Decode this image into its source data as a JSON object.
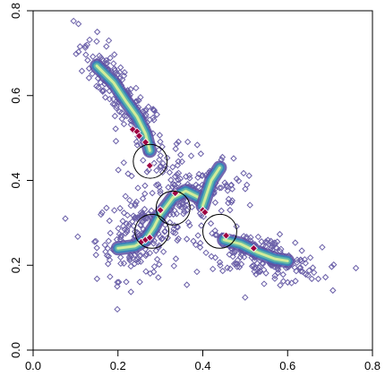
{
  "chart_data": {
    "type": "scatter",
    "title": "",
    "xlabel": "",
    "ylabel": "",
    "xlim": [
      0,
      0.8
    ],
    "ylim": [
      0,
      0.8
    ],
    "x_ticks": [
      "0.0",
      "0.2",
      "0.4",
      "0.6",
      "0.8"
    ],
    "y_ticks": [
      "0.0",
      "0.2",
      "0.4",
      "0.6",
      "0.8"
    ],
    "grid": false,
    "legend": "none",
    "colors": {
      "points": "#6a5fa8",
      "density_low": "#5e4fa2",
      "density_mid_low": "#3288bd",
      "density_mid": "#66c2a5",
      "density_mid_high": "#e6f598",
      "density_high": "#9e0142",
      "circles": "#000000"
    },
    "marker": "open-diamond",
    "point_clusters": [
      {
        "cx": 0.21,
        "cy": 0.6,
        "sx": 0.05,
        "sy": 0.07,
        "n": 170,
        "corr": -0.85
      },
      {
        "cx": 0.25,
        "cy": 0.27,
        "sx": 0.05,
        "sy": 0.05,
        "n": 190,
        "corr": 0.1
      },
      {
        "cx": 0.36,
        "cy": 0.36,
        "sx": 0.04,
        "sy": 0.04,
        "n": 90,
        "corr": 0.0
      },
      {
        "cx": 0.54,
        "cy": 0.22,
        "sx": 0.07,
        "sy": 0.03,
        "n": 200,
        "corr": -0.5
      },
      {
        "cx": 0.45,
        "cy": 0.38,
        "sx": 0.04,
        "sy": 0.04,
        "n": 40,
        "corr": 0.0
      },
      {
        "cx": 0.3,
        "cy": 0.46,
        "sx": 0.04,
        "sy": 0.03,
        "n": 30,
        "corr": 0.0
      }
    ],
    "density_paths": [
      {
        "points": [
          [
            0.15,
            0.67
          ],
          [
            0.19,
            0.63
          ],
          [
            0.22,
            0.585
          ],
          [
            0.245,
            0.55
          ],
          [
            0.265,
            0.51
          ],
          [
            0.275,
            0.47
          ]
        ],
        "peak": 0.15
      },
      {
        "points": [
          [
            0.2,
            0.24
          ],
          [
            0.24,
            0.245
          ],
          [
            0.265,
            0.26
          ],
          [
            0.285,
            0.29
          ],
          [
            0.3,
            0.32
          ],
          [
            0.33,
            0.36
          ],
          [
            0.36,
            0.375
          ],
          [
            0.39,
            0.36
          ]
        ],
        "peak": 0.22
      },
      {
        "points": [
          [
            0.4,
            0.34
          ],
          [
            0.41,
            0.37
          ],
          [
            0.42,
            0.4
          ],
          [
            0.44,
            0.43
          ]
        ],
        "peak": 0.2
      },
      {
        "points": [
          [
            0.45,
            0.26
          ],
          [
            0.49,
            0.25
          ],
          [
            0.53,
            0.23
          ],
          [
            0.57,
            0.215
          ],
          [
            0.6,
            0.21
          ]
        ],
        "peak": 0.12
      }
    ],
    "red_points": [
      [
        0.235,
        0.52
      ],
      [
        0.245,
        0.515
      ],
      [
        0.25,
        0.505
      ],
      [
        0.265,
        0.49
      ],
      [
        0.275,
        0.435
      ],
      [
        0.255,
        0.255
      ],
      [
        0.265,
        0.26
      ],
      [
        0.275,
        0.265
      ],
      [
        0.3,
        0.33
      ],
      [
        0.335,
        0.37
      ],
      [
        0.4,
        0.33
      ],
      [
        0.405,
        0.325
      ],
      [
        0.455,
        0.27
      ],
      [
        0.52,
        0.24
      ]
    ],
    "circles": [
      {
        "x": 0.276,
        "y": 0.445,
        "r": 0.04
      },
      {
        "x": 0.28,
        "y": 0.28,
        "r": 0.04
      },
      {
        "x": 0.33,
        "y": 0.335,
        "r": 0.04
      },
      {
        "x": 0.44,
        "y": 0.28,
        "r": 0.04
      }
    ]
  }
}
